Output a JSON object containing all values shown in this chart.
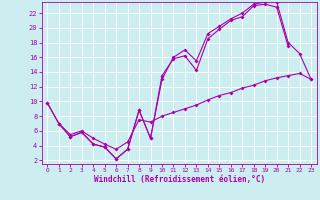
{
  "background_color": "#cceef0",
  "grid_color": "#ffffff",
  "line_color": "#aa00aa",
  "xlabel": "Windchill (Refroidissement éolien,°C)",
  "xlim": [
    -0.5,
    23.5
  ],
  "ylim": [
    1.5,
    23.5
  ],
  "xticks": [
    0,
    1,
    2,
    3,
    4,
    5,
    6,
    7,
    8,
    9,
    10,
    11,
    12,
    13,
    14,
    15,
    16,
    17,
    18,
    19,
    20,
    21,
    22,
    23
  ],
  "yticks": [
    2,
    4,
    6,
    8,
    10,
    12,
    14,
    16,
    18,
    20,
    22
  ],
  "line1_x": [
    0,
    1,
    2,
    3,
    4,
    5,
    6,
    7,
    8,
    9,
    10,
    11,
    12,
    13,
    14,
    15,
    16,
    17,
    18,
    19,
    20,
    21
  ],
  "line1_y": [
    9.8,
    7.0,
    5.2,
    5.8,
    4.2,
    3.8,
    2.2,
    3.5,
    8.8,
    5.0,
    13.5,
    15.8,
    16.2,
    14.2,
    18.5,
    19.8,
    21.0,
    21.5,
    23.0,
    23.2,
    22.8,
    17.5
  ],
  "line2_x": [
    0,
    1,
    2,
    3,
    4,
    5,
    6,
    7,
    8,
    9,
    10,
    11,
    12,
    13,
    14,
    15,
    16,
    17,
    18,
    19,
    20,
    21,
    22,
    23
  ],
  "line2_y": [
    9.8,
    7.0,
    5.2,
    5.8,
    4.2,
    3.8,
    2.2,
    3.5,
    8.8,
    5.0,
    13.0,
    16.0,
    17.0,
    15.5,
    19.2,
    20.2,
    21.2,
    22.0,
    23.2,
    23.5,
    23.5,
    18.0,
    16.5,
    13.0
  ],
  "line3_x": [
    1,
    2,
    3,
    4,
    5,
    6,
    7,
    8,
    9,
    10,
    11,
    12,
    13,
    14,
    15,
    16,
    17,
    18,
    19,
    20,
    21,
    22,
    23
  ],
  "line3_y": [
    7.0,
    5.5,
    6.0,
    5.0,
    4.2,
    3.5,
    4.5,
    7.5,
    7.2,
    8.0,
    8.5,
    9.0,
    9.5,
    10.2,
    10.8,
    11.2,
    11.8,
    12.2,
    12.8,
    13.2,
    13.5,
    13.8,
    13.0
  ]
}
